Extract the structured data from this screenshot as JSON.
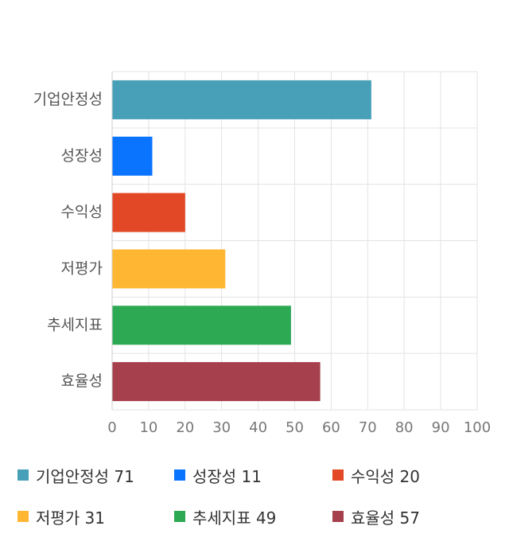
{
  "chart_data": {
    "type": "bar",
    "orientation": "horizontal",
    "categories": [
      "기업안정성",
      "성장성",
      "수익성",
      "저평가",
      "추세지표",
      "효율성"
    ],
    "values": [
      71,
      11,
      20,
      31,
      49,
      57
    ],
    "colors": [
      "#48a0b8",
      "#0a74ff",
      "#e24826",
      "#ffb733",
      "#2da853",
      "#a6404d"
    ],
    "xlim": [
      0,
      100
    ],
    "xticks": [
      0,
      10,
      20,
      30,
      40,
      50,
      60,
      70,
      80,
      90,
      100
    ],
    "grid": true,
    "legend_position": "bottom"
  },
  "legend": [
    {
      "label": "기업안정성 71",
      "color": "#48a0b8"
    },
    {
      "label": "성장성 11",
      "color": "#0a74ff"
    },
    {
      "label": "수익성 20",
      "color": "#e24826"
    },
    {
      "label": "저평가 31",
      "color": "#ffb733"
    },
    {
      "label": "추세지표 49",
      "color": "#2da853"
    },
    {
      "label": "효율성 57",
      "color": "#a6404d"
    }
  ]
}
